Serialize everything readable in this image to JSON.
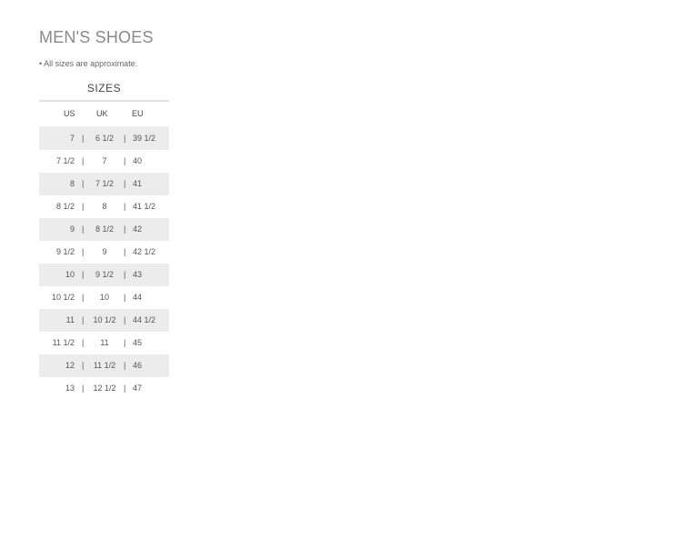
{
  "title": "MEN'S SHOES",
  "note": "• All sizes are approximate.",
  "table": {
    "caption": "SIZES",
    "headers": [
      "US",
      "UK",
      "EU"
    ],
    "separator": "|",
    "rows": [
      [
        "7",
        "6 1/2",
        "39 1/2"
      ],
      [
        "7 1/2",
        "7",
        "40"
      ],
      [
        "8",
        "7 1/2",
        "41"
      ],
      [
        "8 1/2",
        "8",
        "41 1/2"
      ],
      [
        "9",
        "8 1/2",
        "42"
      ],
      [
        "9 1/2",
        "9",
        "42 1/2"
      ],
      [
        "10",
        "9 1/2",
        "43"
      ],
      [
        "10 1/2",
        "10",
        "44"
      ],
      [
        "11",
        "10 1/2",
        "44 1/2"
      ],
      [
        "11 1/2",
        "11",
        "45"
      ],
      [
        "12",
        "11 1/2",
        "46"
      ],
      [
        "13",
        "12 1/2",
        "47"
      ]
    ]
  }
}
